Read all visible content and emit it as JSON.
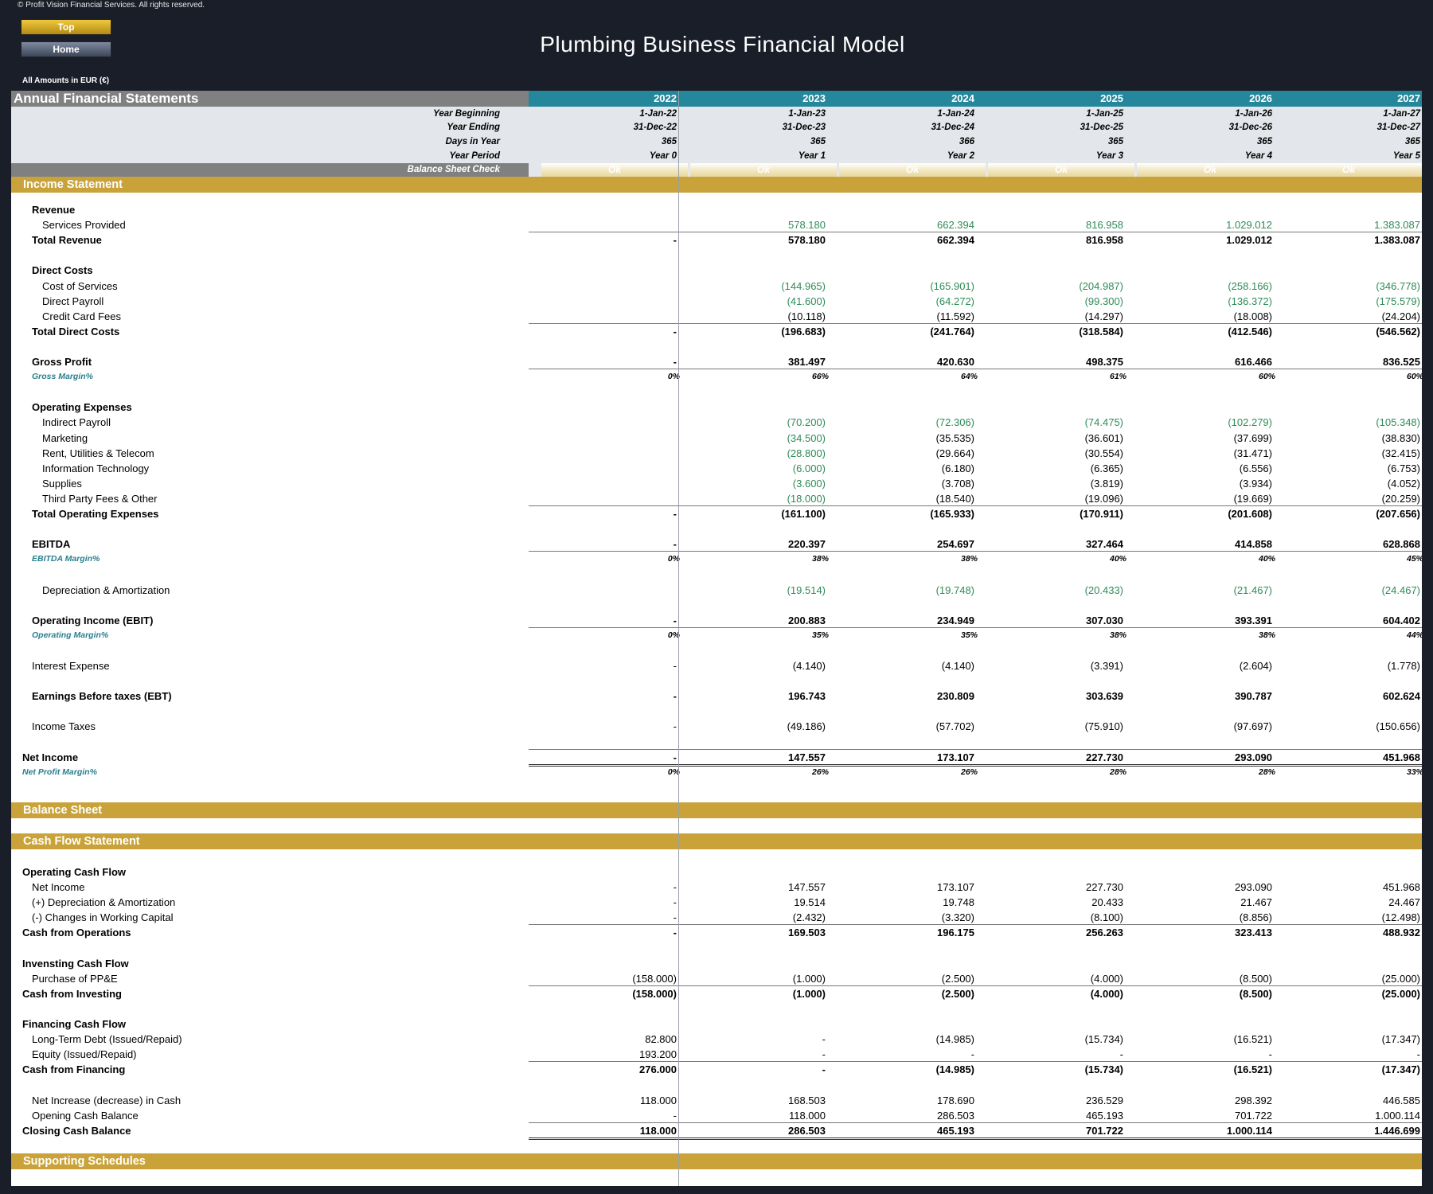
{
  "header": {
    "copyright": "© Profit Vision Financial Services. All rights reserved.",
    "top_button": "Top",
    "home_button": "Home",
    "title": "Plumbing Business Financial Model",
    "amounts_note": "All Amounts in  EUR (€)"
  },
  "table": {
    "title": "Annual Financial Statements",
    "years": [
      "2022",
      "2023",
      "2024",
      "2025",
      "2026",
      "2027"
    ],
    "year_beginning_label": "Year Beginning",
    "year_beginning": [
      "1-Jan-22",
      "1-Jan-23",
      "1-Jan-24",
      "1-Jan-25",
      "1-Jan-26",
      "1-Jan-27"
    ],
    "year_ending_label": "Year Ending",
    "year_ending": [
      "31-Dec-22",
      "31-Dec-23",
      "31-Dec-24",
      "31-Dec-25",
      "31-Dec-26",
      "31-Dec-27"
    ],
    "days_label": "Days in Year",
    "days": [
      "365",
      "365",
      "366",
      "365",
      "365",
      "365"
    ],
    "period_label": "Year Period",
    "periods": [
      "Year 0",
      "Year 1",
      "Year 2",
      "Year 3",
      "Year 4",
      "Year 5"
    ],
    "bs_check_label": "Balance Sheet Check",
    "bs_check": [
      "Ok",
      "Ok",
      "Ok",
      "Ok",
      "Ok",
      "Ok"
    ]
  },
  "sections": {
    "income": "Income Statement",
    "balance": "Balance Sheet",
    "cashflow": "Cash Flow Statement",
    "supporting": "Supporting Schedules"
  },
  "income_rows": [
    {
      "label": "Revenue",
      "indent": 1,
      "bold": true,
      "values": []
    },
    {
      "label": "Services Provided",
      "indent": 2,
      "green": true,
      "values": [
        "",
        "578.180",
        "662.394",
        "816.958",
        "1.029.012",
        "1.383.087"
      ]
    },
    {
      "label": "Total Revenue",
      "indent": 1,
      "bold": true,
      "line": true,
      "values": [
        "-",
        "578.180",
        "662.394",
        "816.958",
        "1.029.012",
        "1.383.087"
      ]
    },
    {
      "label": "",
      "values": []
    },
    {
      "label": "Direct Costs",
      "indent": 1,
      "bold": true,
      "values": []
    },
    {
      "label": "Cost of Services",
      "indent": 2,
      "green": true,
      "values": [
        "",
        "(144.965)",
        "(165.901)",
        "(204.987)",
        "(258.166)",
        "(346.778)"
      ]
    },
    {
      "label": "Direct Payroll",
      "indent": 2,
      "green": true,
      "values": [
        "",
        "(41.600)",
        "(64.272)",
        "(99.300)",
        "(136.372)",
        "(175.579)"
      ]
    },
    {
      "label": "Credit Card Fees",
      "indent": 2,
      "values": [
        "",
        "(10.118)",
        "(11.592)",
        "(14.297)",
        "(18.008)",
        "(24.204)"
      ]
    },
    {
      "label": "Total Direct Costs",
      "indent": 1,
      "bold": true,
      "line": true,
      "values": [
        "-",
        "(196.683)",
        "(241.764)",
        "(318.584)",
        "(412.546)",
        "(546.562)"
      ]
    },
    {
      "label": "",
      "values": []
    },
    {
      "label": "Gross Profit",
      "indent": 1,
      "bold": true,
      "lineAfter": true,
      "values": [
        "-",
        "381.497",
        "420.630",
        "498.375",
        "616.466",
        "836.525"
      ]
    },
    {
      "label": "Gross Margin%",
      "indent": 1,
      "pct": true,
      "values": [
        "0%",
        "66%",
        "64%",
        "61%",
        "60%",
        "60%"
      ]
    },
    {
      "label": "",
      "values": []
    },
    {
      "label": "Operating Expenses",
      "indent": 1,
      "bold": true,
      "values": []
    },
    {
      "label": "Indirect Payroll",
      "indent": 2,
      "green": true,
      "values": [
        "",
        "(70.200)",
        "(72.306)",
        "(74.475)",
        "(102.279)",
        "(105.348)"
      ]
    },
    {
      "label": "Marketing",
      "indent": 2,
      "greenFirst": true,
      "values": [
        "",
        "(34.500)",
        "(35.535)",
        "(36.601)",
        "(37.699)",
        "(38.830)"
      ]
    },
    {
      "label": "Rent, Utilities & Telecom",
      "indent": 2,
      "greenFirst": true,
      "values": [
        "",
        "(28.800)",
        "(29.664)",
        "(30.554)",
        "(31.471)",
        "(32.415)"
      ]
    },
    {
      "label": "Information Technology",
      "indent": 2,
      "greenFirst": true,
      "values": [
        "",
        "(6.000)",
        "(6.180)",
        "(6.365)",
        "(6.556)",
        "(6.753)"
      ]
    },
    {
      "label": "Supplies",
      "indent": 2,
      "greenFirst": true,
      "values": [
        "",
        "(3.600)",
        "(3.708)",
        "(3.819)",
        "(3.934)",
        "(4.052)"
      ]
    },
    {
      "label": "Third Party Fees & Other",
      "indent": 2,
      "greenFirst": true,
      "values": [
        "",
        "(18.000)",
        "(18.540)",
        "(19.096)",
        "(19.669)",
        "(20.259)"
      ]
    },
    {
      "label": "Total Operating Expenses",
      "indent": 1,
      "bold": true,
      "line": true,
      "values": [
        "-",
        "(161.100)",
        "(165.933)",
        "(170.911)",
        "(201.608)",
        "(207.656)"
      ]
    },
    {
      "label": "",
      "values": []
    },
    {
      "label": "EBITDA",
      "indent": 1,
      "bold": true,
      "lineAfter": true,
      "values": [
        "-",
        "220.397",
        "254.697",
        "327.464",
        "414.858",
        "628.868"
      ]
    },
    {
      "label": "EBITDA Margin%",
      "indent": 1,
      "pct": true,
      "values": [
        "0%",
        "38%",
        "38%",
        "40%",
        "40%",
        "45%"
      ]
    },
    {
      "label": "",
      "values": []
    },
    {
      "label": "Depreciation & Amortization",
      "indent": 2,
      "green": true,
      "values": [
        "",
        "(19.514)",
        "(19.748)",
        "(20.433)",
        "(21.467)",
        "(24.467)"
      ]
    },
    {
      "label": "",
      "values": []
    },
    {
      "label": "Operating Income (EBIT)",
      "indent": 1,
      "bold": true,
      "lineAfter": true,
      "values": [
        "-",
        "200.883",
        "234.949",
        "307.030",
        "393.391",
        "604.402"
      ]
    },
    {
      "label": "Operating Margin%",
      "indent": 1,
      "pct": true,
      "values": [
        "0%",
        "35%",
        "35%",
        "38%",
        "38%",
        "44%"
      ]
    },
    {
      "label": "",
      "values": []
    },
    {
      "label": "Interest Expense",
      "indent": 1,
      "values": [
        "-",
        "(4.140)",
        "(4.140)",
        "(3.391)",
        "(2.604)",
        "(1.778)"
      ]
    },
    {
      "label": "",
      "values": []
    },
    {
      "label": "Earnings Before taxes (EBT)",
      "indent": 1,
      "bold": true,
      "values": [
        "-",
        "196.743",
        "230.809",
        "303.639",
        "390.787",
        "602.624"
      ]
    },
    {
      "label": "",
      "values": []
    },
    {
      "label": "Income Taxes",
      "indent": 1,
      "values": [
        "-",
        "(49.186)",
        "(57.702)",
        "(75.910)",
        "(97.697)",
        "(150.656)"
      ]
    },
    {
      "label": "",
      "values": []
    },
    {
      "label": "Net Income",
      "indent": 0,
      "bold": true,
      "line": true,
      "dbl": true,
      "values": [
        "-",
        "147.557",
        "173.107",
        "227.730",
        "293.090",
        "451.968"
      ]
    },
    {
      "label": "Net Profit Margin%",
      "indent": 0,
      "pct": true,
      "values": [
        "0%",
        "26%",
        "26%",
        "28%",
        "28%",
        "33%"
      ]
    }
  ],
  "cash_rows": [
    {
      "label": "Operating Cash Flow",
      "indent": 0,
      "bold": true,
      "values": []
    },
    {
      "label": "Net Income",
      "indent": 1,
      "values": [
        "-",
        "147.557",
        "173.107",
        "227.730",
        "293.090",
        "451.968"
      ]
    },
    {
      "label": "(+) Depreciation & Amortization",
      "indent": 1,
      "values": [
        "-",
        "19.514",
        "19.748",
        "20.433",
        "21.467",
        "24.467"
      ]
    },
    {
      "label": "(-) Changes in Working Capital",
      "indent": 1,
      "values": [
        "-",
        "(2.432)",
        "(3.320)",
        "(8.100)",
        "(8.856)",
        "(12.498)"
      ]
    },
    {
      "label": "Cash from Operations",
      "indent": 0,
      "bold": true,
      "line": true,
      "values": [
        "-",
        "169.503",
        "196.175",
        "256.263",
        "323.413",
        "488.932"
      ]
    },
    {
      "label": "",
      "values": []
    },
    {
      "label": "Invensting Cash Flow",
      "indent": 0,
      "bold": true,
      "values": []
    },
    {
      "label": "Purchase of PP&E",
      "indent": 1,
      "values": [
        "(158.000)",
        "(1.000)",
        "(2.500)",
        "(4.000)",
        "(8.500)",
        "(25.000)"
      ]
    },
    {
      "label": "Cash from Investing",
      "indent": 0,
      "bold": true,
      "line": true,
      "values": [
        "(158.000)",
        "(1.000)",
        "(2.500)",
        "(4.000)",
        "(8.500)",
        "(25.000)"
      ]
    },
    {
      "label": "",
      "values": []
    },
    {
      "label": "Financing Cash Flow",
      "indent": 0,
      "bold": true,
      "values": []
    },
    {
      "label": "Long-Term Debt (Issued/Repaid)",
      "indent": 1,
      "values": [
        "82.800",
        "-",
        "(14.985)",
        "(15.734)",
        "(16.521)",
        "(17.347)"
      ]
    },
    {
      "label": "Equity (Issued/Repaid)",
      "indent": 1,
      "values": [
        "193.200",
        "-",
        "-",
        "-",
        "-",
        "-"
      ]
    },
    {
      "label": "Cash from Financing",
      "indent": 0,
      "bold": true,
      "line": true,
      "values": [
        "276.000",
        "-",
        "(14.985)",
        "(15.734)",
        "(16.521)",
        "(17.347)"
      ]
    },
    {
      "label": "",
      "values": []
    },
    {
      "label": "Net Increase (decrease) in Cash",
      "indent": 1,
      "values": [
        "118.000",
        "168.503",
        "178.690",
        "236.529",
        "298.392",
        "446.585"
      ]
    },
    {
      "label": "Opening Cash Balance",
      "indent": 1,
      "values": [
        "-",
        "118.000",
        "286.503",
        "465.193",
        "701.722",
        "1.000.114"
      ]
    },
    {
      "label": "Closing Cash Balance",
      "indent": 0,
      "bold": true,
      "line": true,
      "dbl": true,
      "values": [
        "118.000",
        "286.503",
        "465.193",
        "701.722",
        "1.000.114",
        "1.446.699"
      ]
    }
  ]
}
